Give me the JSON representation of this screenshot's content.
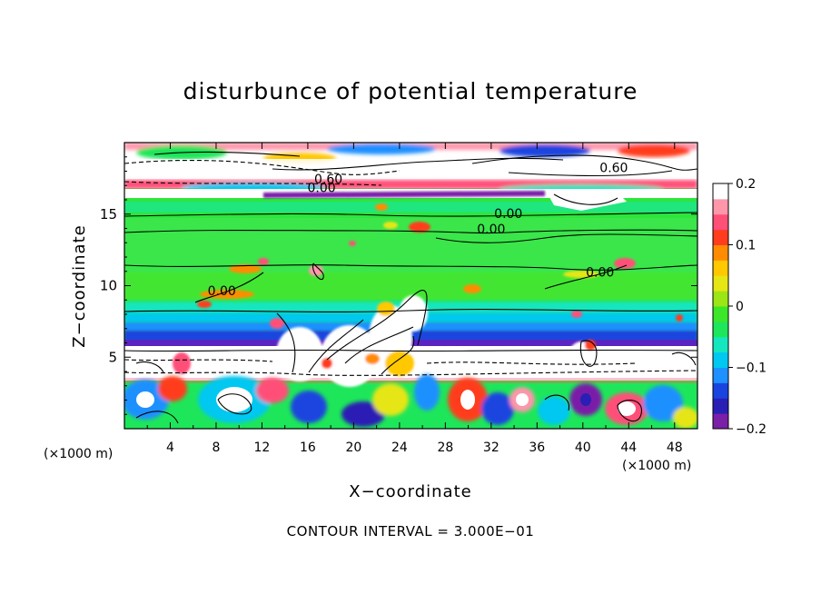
{
  "chart_data": {
    "type": "heatmap",
    "title": "disturbunce of potential temperature",
    "xlabel": "X−coordinate",
    "ylabel": "Z−coordinate",
    "x_unit": "(×1000 m)",
    "z_unit": "(×1000 m)",
    "xlim": [
      0,
      50
    ],
    "ylim": [
      0,
      20
    ],
    "x_ticks": [
      4,
      8,
      12,
      16,
      20,
      24,
      28,
      32,
      36,
      40,
      44,
      48
    ],
    "x_tick_labels": [
      "4",
      "8",
      "12",
      "16",
      "20",
      "24",
      "28",
      "32",
      "36",
      "40",
      "44",
      "48"
    ],
    "y_ticks": [
      5,
      10,
      15
    ],
    "y_tick_labels": [
      "5",
      "10",
      "15"
    ],
    "colorbar": {
      "range": [
        -0.2,
        0.2
      ],
      "ticks": [
        0.2,
        0.1,
        0,
        -0.1,
        -0.2
      ],
      "tick_labels": [
        "0.2",
        "0.1",
        "0",
        "−0.1",
        "−0.2"
      ],
      "colors": [
        "#7a1fa8",
        "#2a1fb4",
        "#1a44e0",
        "#1e90ff",
        "#00c8f0",
        "#14e6c0",
        "#1ee65a",
        "#3ce628",
        "#9be614",
        "#e6e614",
        "#ffc800",
        "#ff8c00",
        "#ff3c1e",
        "#ff5078",
        "#ff96aa",
        "#ffffff"
      ]
    },
    "contour_labels": [
      {
        "text": "0.60",
        "x": 17.8,
        "z": 17.2
      },
      {
        "text": "0.00",
        "x": 17.2,
        "z": 16.6
      },
      {
        "text": "0.60",
        "x": 42.7,
        "z": 18.0
      },
      {
        "text": "0.00",
        "x": 33.5,
        "z": 14.8
      },
      {
        "text": "0.00",
        "x": 32.0,
        "z": 13.7
      },
      {
        "text": "0.00",
        "x": 41.5,
        "z": 10.7
      },
      {
        "text": "0.00",
        "x": 8.5,
        "z": 9.4
      }
    ],
    "contour_interval_label": "CONTOUR INTERVAL = 3.000E−01"
  }
}
